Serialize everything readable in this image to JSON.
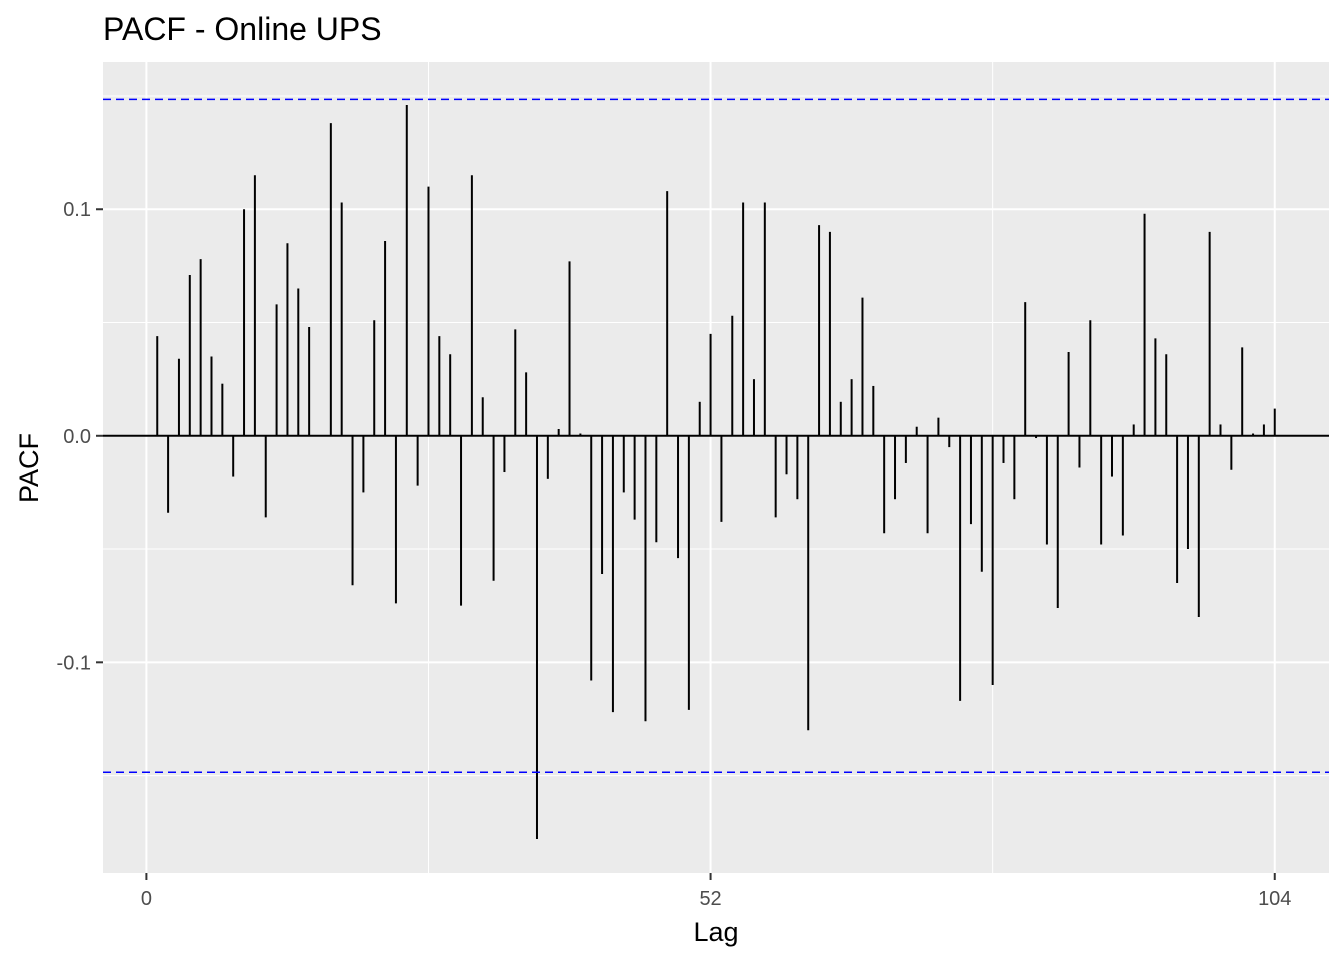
{
  "chart_data": {
    "type": "bar",
    "title": "PACF - Online UPS",
    "xlabel": "Lag",
    "ylabel": "PACF",
    "xlim": [
      -4,
      109
    ],
    "ylim": [
      -0.193,
      0.165
    ],
    "x_ticks": [
      0,
      52,
      104
    ],
    "x_tick_labels": [
      "0",
      "52",
      "104"
    ],
    "y_ticks": [
      -0.1,
      0.0,
      0.1
    ],
    "y_tick_labels": [
      "-0.1",
      "0.0",
      "0.1"
    ],
    "grid": true,
    "confidence_bound": 0.1485,
    "colors": {
      "panel": "#ebebeb",
      "grid": "#ffffff",
      "bars": "#000000",
      "bounds": "#0000ff"
    },
    "lags": [
      1,
      2,
      3,
      4,
      5,
      6,
      7,
      8,
      9,
      10,
      11,
      12,
      13,
      14,
      15,
      16,
      17,
      18,
      19,
      20,
      21,
      22,
      23,
      24,
      25,
      26,
      27,
      28,
      29,
      30,
      31,
      32,
      33,
      34,
      35,
      36,
      37,
      38,
      39,
      40,
      41,
      42,
      43,
      44,
      45,
      46,
      47,
      48,
      49,
      50,
      51,
      52,
      53,
      54,
      55,
      56,
      57,
      58,
      59,
      60,
      61,
      62,
      63,
      64,
      65,
      66,
      67,
      68,
      69,
      70,
      71,
      72,
      73,
      74,
      75,
      76,
      77,
      78,
      79,
      80,
      81,
      82,
      83,
      84,
      85,
      86,
      87,
      88,
      89,
      90,
      91,
      92,
      93,
      94,
      95,
      96,
      97,
      98,
      99,
      100,
      101,
      102,
      103,
      104
    ],
    "values": [
      0.044,
      -0.034,
      0.034,
      0.071,
      0.078,
      0.035,
      0.023,
      -0.018,
      0.1,
      0.115,
      -0.036,
      0.058,
      0.085,
      0.065,
      0.048,
      0,
      0.138,
      0.103,
      -0.066,
      -0.025,
      0.051,
      0.086,
      -0.074,
      0.146,
      -0.022,
      0.11,
      0.044,
      0.036,
      -0.075,
      0.115,
      0.017,
      -0.064,
      -0.016,
      0.047,
      0.028,
      -0.178,
      -0.019,
      0.003,
      0.077,
      0.001,
      -0.108,
      -0.061,
      -0.122,
      -0.025,
      -0.037,
      -0.126,
      -0.047,
      0.108,
      -0.054,
      -0.121,
      0.015,
      0.045,
      -0.038,
      0.053,
      0.103,
      0.025,
      0.103,
      -0.036,
      -0.017,
      -0.028,
      -0.13,
      0.093,
      0.09,
      0.015,
      0.025,
      0.061,
      0.022,
      -0.043,
      -0.028,
      -0.012,
      0.004,
      -0.043,
      0.008,
      -0.005,
      -0.117,
      -0.039,
      -0.06,
      -0.11,
      -0.012,
      -0.028,
      0.059,
      -0.001,
      -0.048,
      -0.076,
      0.037,
      -0.014,
      0.051,
      -0.048,
      -0.018,
      -0.044,
      0.005,
      0.098,
      0.043,
      0.036,
      -0.065,
      -0.05,
      -0.08,
      0.09,
      0.005,
      -0.015,
      0.039,
      0.001,
      0.005,
      0.012
    ]
  }
}
